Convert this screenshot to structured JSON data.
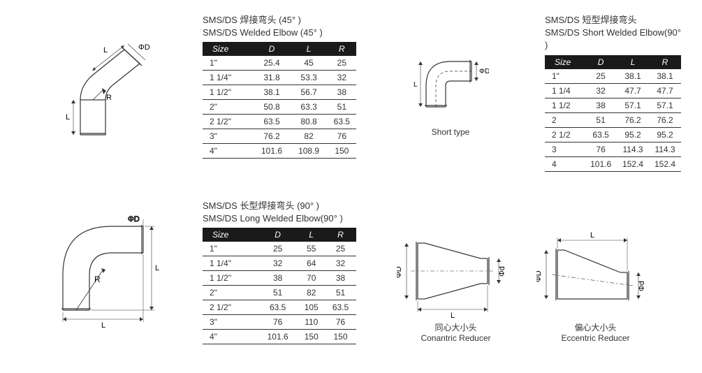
{
  "section1": {
    "title_zh": "SMS/DS 焊接弯头 (45° )",
    "title_en": "SMS/DS Welded Elbow (45° )",
    "columns": [
      "Size",
      "D",
      "L",
      "R"
    ],
    "rows": [
      [
        "1\"",
        "25.4",
        "45",
        "25"
      ],
      [
        "1 1/4\"",
        "31.8",
        "53.3",
        "32"
      ],
      [
        "1 1/2\"",
        "38.1",
        "56.7",
        "38"
      ],
      [
        "2\"",
        "50.8",
        "63.3",
        "51"
      ],
      [
        "2 1/2\"",
        "63.5",
        "80.8",
        "63.5"
      ],
      [
        "3\"",
        "76.2",
        "82",
        "76"
      ],
      [
        "4\"",
        "101.6",
        "108.9",
        "150"
      ]
    ],
    "diagram_labels": {
      "D": "ΦD",
      "L": "L",
      "R": "R"
    }
  },
  "section2": {
    "title_zh": "SMS/DS 短型焊接弯头",
    "title_en": "SMS/DS Short Welded Elbow(90° )",
    "columns": [
      "Size",
      "D",
      "L",
      "R"
    ],
    "rows": [
      [
        "1\"",
        "25",
        "38.1",
        "38.1"
      ],
      [
        "1 1/4",
        "32",
        "47.7",
        "47.7"
      ],
      [
        "1 1/2",
        "38",
        "57.1",
        "57.1"
      ],
      [
        "2",
        "51",
        "76.2",
        "76.2"
      ],
      [
        "2 1/2",
        "63.5",
        "95.2",
        "95.2"
      ],
      [
        "3",
        "76",
        "114.3",
        "114.3"
      ],
      [
        "4",
        "101.6",
        "152.4",
        "152.4"
      ]
    ],
    "diagram_caption": "Short type",
    "diagram_labels": {
      "D": "ΦD",
      "L": "L"
    }
  },
  "section3": {
    "title_zh": "SMS/DS 长型焊接弯头 (90° )",
    "title_en": "SMS/DS Long Welded Elbow(90° )",
    "columns": [
      "Size",
      "D",
      "L",
      "R"
    ],
    "rows": [
      [
        "1\"",
        "25",
        "55",
        "25"
      ],
      [
        "1 1/4\"",
        "32",
        "64",
        "32"
      ],
      [
        "1 1/2\"",
        "38",
        "70",
        "38"
      ],
      [
        "2\"",
        "51",
        "82",
        "51"
      ],
      [
        "2 1/2\"",
        "63.5",
        "105",
        "63.5"
      ],
      [
        "3\"",
        "76",
        "110",
        "76"
      ],
      [
        "4\"",
        "101.6",
        "150",
        "150"
      ]
    ],
    "diagram_labels": {
      "D": "ΦD",
      "L": "L",
      "R": "R"
    }
  },
  "reducers": {
    "concentric": {
      "zh": "同心大小头",
      "en": "Conantric Reducer",
      "labels": {
        "D": "ΦD",
        "d": "Φd",
        "L": "L"
      }
    },
    "eccentric": {
      "zh": "偏心大小头",
      "en": "Eccentric Reducer",
      "labels": {
        "D": "ΦD",
        "d": "Φd",
        "L": "L"
      }
    }
  },
  "style": {
    "header_bg": "#1a1a1a",
    "header_fg": "#ffffff",
    "border_color": "#333333",
    "line_color": "#333333",
    "text_color": "#333333"
  }
}
